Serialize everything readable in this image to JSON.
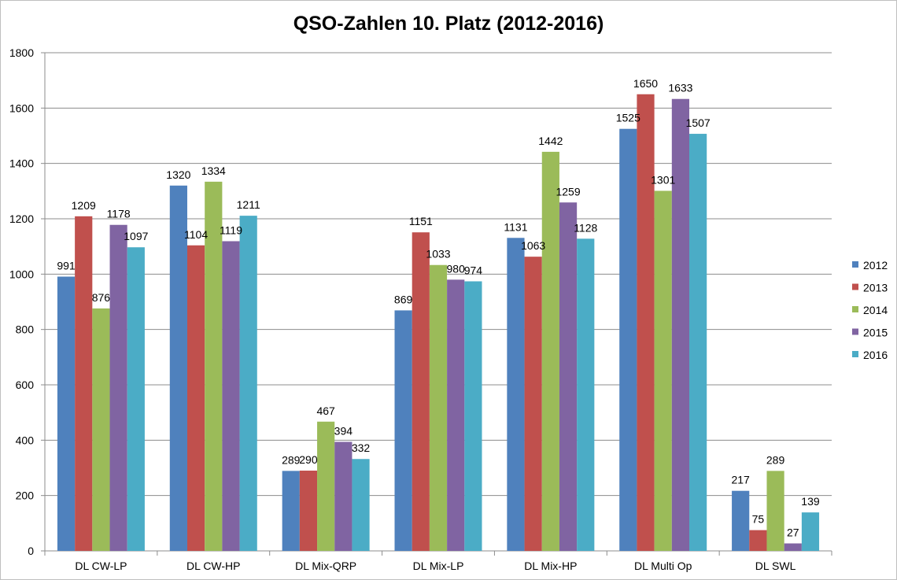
{
  "chart_data": {
    "type": "bar",
    "title": "QSO-Zahlen 10. Platz (2012-2016)",
    "xlabel": "",
    "ylabel": "",
    "ylim": [
      0,
      1800
    ],
    "yticks": [
      0,
      200,
      400,
      600,
      800,
      1000,
      1200,
      1400,
      1600,
      1800
    ],
    "grid": true,
    "legend_position": "right",
    "categories": [
      "DL CW-LP",
      "DL CW-HP",
      "DL Mix-QRP",
      "DL Mix-LP",
      "DL Mix-HP",
      "DL Multi Op",
      "DL SWL"
    ],
    "series": [
      {
        "name": "2012",
        "color": "#4f81bd",
        "values": [
          991,
          1320,
          289,
          869,
          1131,
          1525,
          217
        ]
      },
      {
        "name": "2013",
        "color": "#c0504d",
        "values": [
          1209,
          1104,
          290,
          1151,
          1063,
          1650,
          75
        ]
      },
      {
        "name": "2014",
        "color": "#9bbb59",
        "values": [
          876,
          1334,
          467,
          1033,
          1442,
          1301,
          289
        ]
      },
      {
        "name": "2015",
        "color": "#8064a2",
        "values": [
          1178,
          1119,
          394,
          980,
          1259,
          1633,
          27
        ]
      },
      {
        "name": "2016",
        "color": "#4bacc6",
        "values": [
          1097,
          1211,
          332,
          974,
          1128,
          1507,
          139
        ]
      }
    ]
  }
}
